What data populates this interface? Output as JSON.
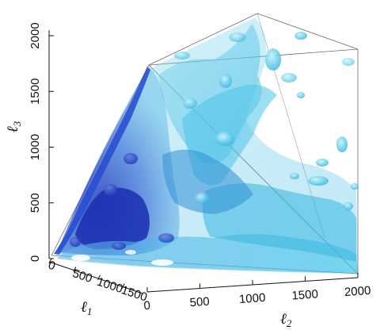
{
  "chart_data": {
    "type": "3d-isosurface",
    "axes": {
      "l1": {
        "label": "ℓ",
        "subscript": "1",
        "range": [
          0,
          2000
        ],
        "ticks": [
          "0",
          "500",
          "1000",
          "1500"
        ]
      },
      "l2": {
        "label": "ℓ",
        "subscript": "2",
        "range": [
          0,
          2000
        ],
        "ticks": [
          "0",
          "500",
          "1000",
          "1500",
          "2000"
        ]
      },
      "l3": {
        "label": "ℓ",
        "subscript": "3",
        "range": [
          0,
          2000
        ],
        "ticks": [
          "0",
          "500",
          "1000",
          "1500",
          "2000"
        ]
      }
    },
    "colors": {
      "deep": "#1f3fc4",
      "mid": "#3f8fe0",
      "light": "#47c6e8",
      "pale": "#a8ecf8",
      "edge": "#6b6b6b"
    }
  }
}
